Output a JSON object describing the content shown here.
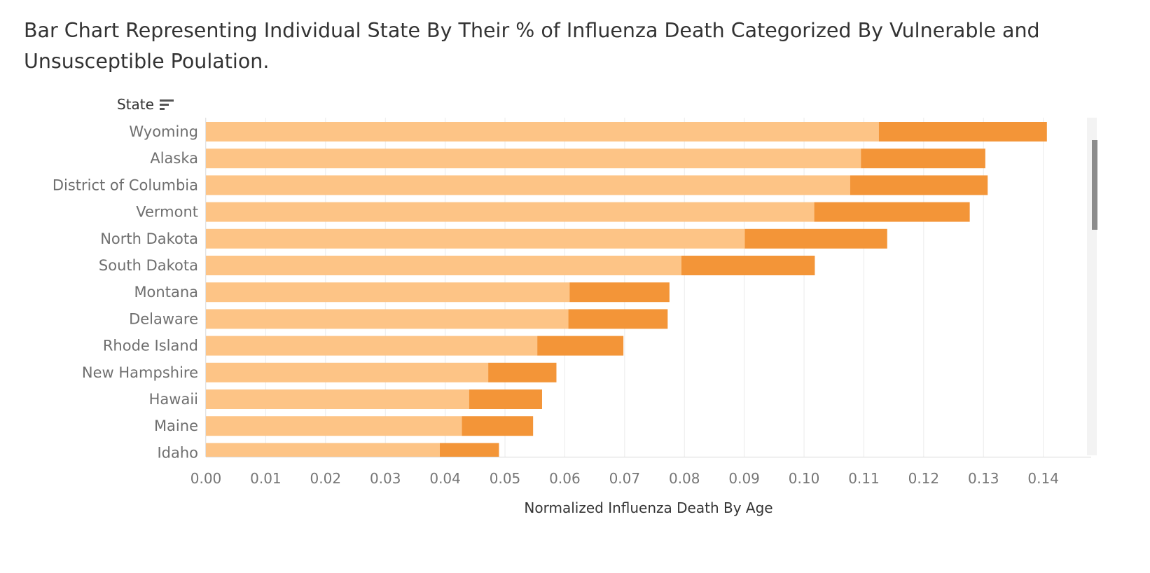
{
  "title": "Bar Chart Representing Individual State By Their % of Influenza Death Categorized By Vulnerable and Unsusceptible Poulation.",
  "state_header": "State",
  "colors": {
    "vulnerable": "#fdc486",
    "unsusceptible": "#f39538",
    "grid": "#ebebeb",
    "axis_text": "#767676",
    "label_text": "#6f6f6f"
  },
  "chart_data": {
    "type": "bar",
    "orientation": "horizontal",
    "stacked": true,
    "categories": [
      "Wyoming",
      "Alaska",
      "District of Columbia",
      "Vermont",
      "North Dakota",
      "South Dakota",
      "Montana",
      "Delaware",
      "Rhode Island",
      "New Hampshire",
      "Hawaii",
      "Maine",
      "Idaho"
    ],
    "series": [
      {
        "values": [
          0.1125,
          0.1095,
          0.1077,
          0.1017,
          0.0901,
          0.0795,
          0.0608,
          0.0606,
          0.0554,
          0.0472,
          0.044,
          0.0428,
          0.0391
        ]
      },
      {
        "values": [
          0.0281,
          0.0208,
          0.023,
          0.026,
          0.0238,
          0.0223,
          0.0167,
          0.0166,
          0.0144,
          0.0114,
          0.0122,
          0.0119,
          0.0099
        ]
      }
    ],
    "xlabel": "Normalized Influenza Death By Age",
    "ylabel": "State",
    "ticks": [
      "0.00",
      "0.01",
      "0.02",
      "0.03",
      "0.04",
      "0.05",
      "0.06",
      "0.07",
      "0.08",
      "0.09",
      "0.10",
      "0.11",
      "0.12",
      "0.13",
      "0.14"
    ],
    "xlim": [
      0,
      0.148
    ],
    "grid": true
  }
}
